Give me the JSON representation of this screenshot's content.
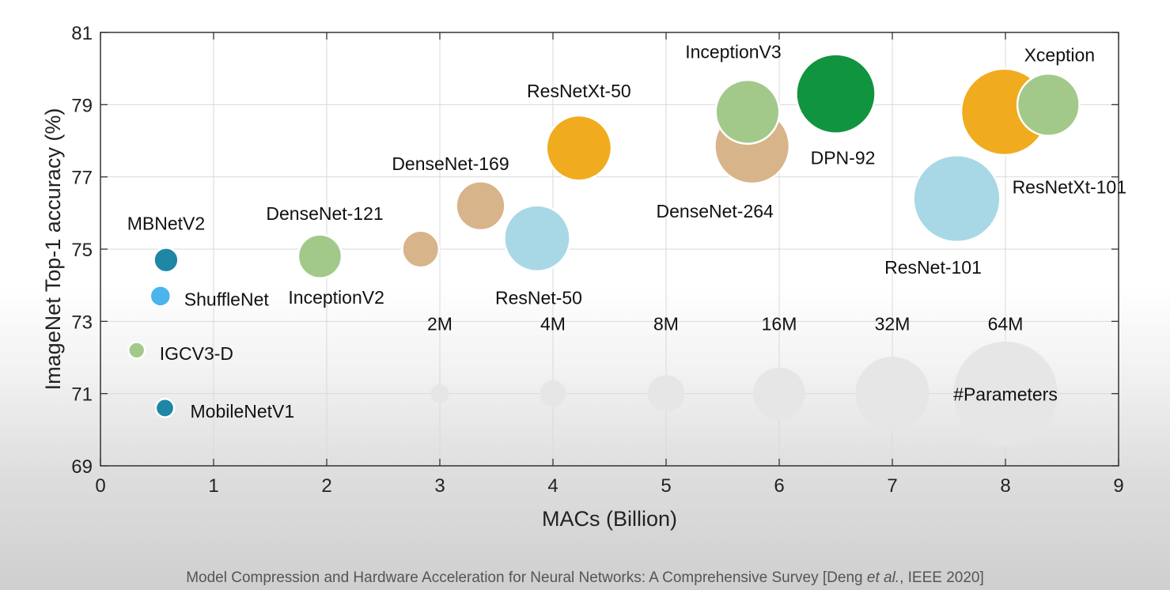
{
  "chart_data": {
    "type": "scatter",
    "subtype": "bubble",
    "xlabel": "MACs (Billion)",
    "ylabel": "ImageNet Top-1 accuracy (%)",
    "xlim": [
      0,
      9
    ],
    "ylim": [
      69,
      81
    ],
    "x_ticks": [
      0,
      1,
      2,
      3,
      4,
      5,
      6,
      7,
      8,
      9
    ],
    "y_ticks": [
      69,
      71,
      73,
      75,
      77,
      79,
      81
    ],
    "grid": true,
    "size_unit": "parameters (millions)",
    "models": [
      {
        "name": "MBNetV2",
        "macs": 0.58,
        "acc": 74.7,
        "params_m": 3.5,
        "color": "#1f86a6"
      },
      {
        "name": "ShuffleNet",
        "macs": 0.53,
        "acc": 73.7,
        "params_m": 2.5,
        "color": "#4bb4ec"
      },
      {
        "name": "IGCV3-D",
        "macs": 0.32,
        "acc": 72.2,
        "params_m": 1.6,
        "color": "#a2c98a"
      },
      {
        "name": "MobileNetV1",
        "macs": 0.57,
        "acc": 70.6,
        "params_m": 2.0,
        "color": "#1f86a6"
      },
      {
        "name": "InceptionV2",
        "macs": 1.94,
        "acc": 74.8,
        "params_m": 11.2,
        "color": "#a2c98a"
      },
      {
        "name": "DenseNet-121",
        "macs": 2.83,
        "acc": 75.0,
        "params_m": 8.0,
        "color": "#d8b48a"
      },
      {
        "name": "DenseNet-169",
        "macs": 3.36,
        "acc": 76.2,
        "params_m": 14.1,
        "color": "#d8b48a"
      },
      {
        "name": "ResNet-50",
        "macs": 3.86,
        "acc": 75.3,
        "params_m": 25.6,
        "color": "#a8d8e6"
      },
      {
        "name": "ResNetXt-50",
        "macs": 4.23,
        "acc": 77.8,
        "params_m": 25.0,
        "color": "#f0ac1e"
      },
      {
        "name": "DenseNet-264",
        "macs": 5.76,
        "acc": 77.85,
        "params_m": 33.0,
        "color": "#d8b48a"
      },
      {
        "name": "InceptionV3",
        "macs": 5.72,
        "acc": 78.8,
        "params_m": 24.0,
        "color": "#a2c98a"
      },
      {
        "name": "DPN-92",
        "macs": 6.5,
        "acc": 79.3,
        "params_m": 37.0,
        "color": "#10943f"
      },
      {
        "name": "ResNet-101",
        "macs": 7.57,
        "acc": 76.4,
        "params_m": 44.5,
        "color": "#a8d8e6"
      },
      {
        "name": "ResNetXt-101",
        "macs": 7.99,
        "acc": 78.8,
        "params_m": 44.0,
        "color": "#f0ac1e"
      },
      {
        "name": "Xception",
        "macs": 8.38,
        "acc": 79.0,
        "params_m": 22.8,
        "color": "#a2c98a"
      }
    ],
    "size_legend": {
      "title": "#Parameters",
      "y": 71,
      "items": [
        {
          "label": "2M",
          "macs": 3,
          "params_m": 2
        },
        {
          "label": "4M",
          "macs": 4,
          "params_m": 4
        },
        {
          "label": "8M",
          "macs": 5,
          "params_m": 8
        },
        {
          "label": "16M",
          "macs": 6,
          "params_m": 16
        },
        {
          "label": "32M",
          "macs": 7,
          "params_m": 32
        },
        {
          "label": "64M",
          "macs": 8,
          "params_m": 64
        }
      ]
    }
  },
  "caption": {
    "prefix": "Model Compression and Hardware Acceleration for Neural Networks: A Comprehensive Survey [Deng ",
    "italic": "et al.",
    "suffix": ", IEEE 2020]"
  }
}
